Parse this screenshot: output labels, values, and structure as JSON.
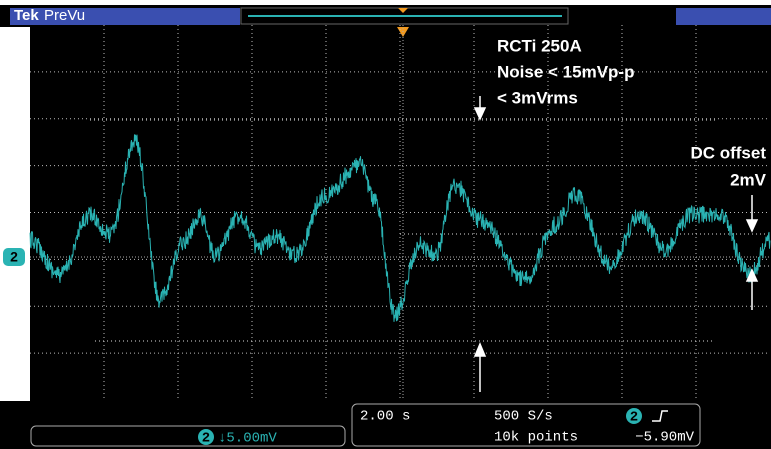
{
  "header": {
    "brand": "Tek",
    "mode": "PreVu"
  },
  "annotations": {
    "title": "RCTi 250A",
    "noise_pp": "Noise < 15mVp-p",
    "noise_rms": "< 3mVrms",
    "offset_label": "DC offset",
    "offset_value": "2mV"
  },
  "channel_marker": "2",
  "status": {
    "channel": "2",
    "scale": "↓5.00mV",
    "timebase": "2.00 s",
    "sample_rate": "500 S/s",
    "record_length": "10k points",
    "trigger_channel": "2",
    "trigger_level": "−5.90mV"
  }
}
